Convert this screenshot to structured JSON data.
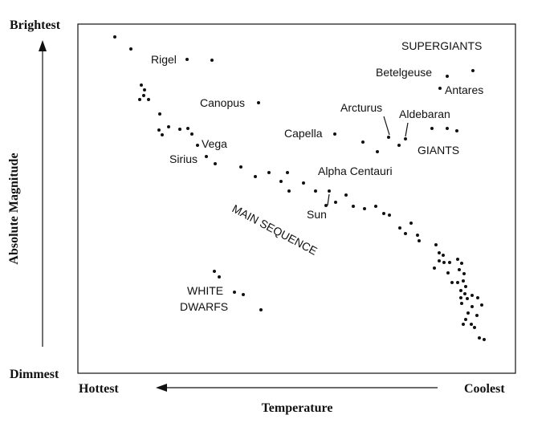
{
  "labels": {
    "brightest": "Brightest",
    "dimmest": "Dimmest",
    "hottest": "Hottest",
    "coolest": "Coolest",
    "x_axis_title": "Temperature",
    "y_axis_title": "Absolute Magnitude"
  },
  "groups": {
    "supergiants": "SUPERGIANTS",
    "giants": "GIANTS",
    "main_sequence": "MAIN SEQUENCE",
    "white": "WHITE",
    "dwarfs": "DWARFS"
  },
  "stars": {
    "rigel": "Rigel",
    "canopus": "Canopus",
    "vega": "Vega",
    "sirius": "Sirius",
    "capella": "Capella",
    "arcturus": "Arcturus",
    "aldebaran": "Aldebaran",
    "betelgeuse": "Betelgeuse",
    "antares": "Antares",
    "alpha_centauri": "Alpha Centauri",
    "sun": "Sun"
  },
  "colors": {
    "ink": "#111111",
    "background": "#ffffff"
  }
}
